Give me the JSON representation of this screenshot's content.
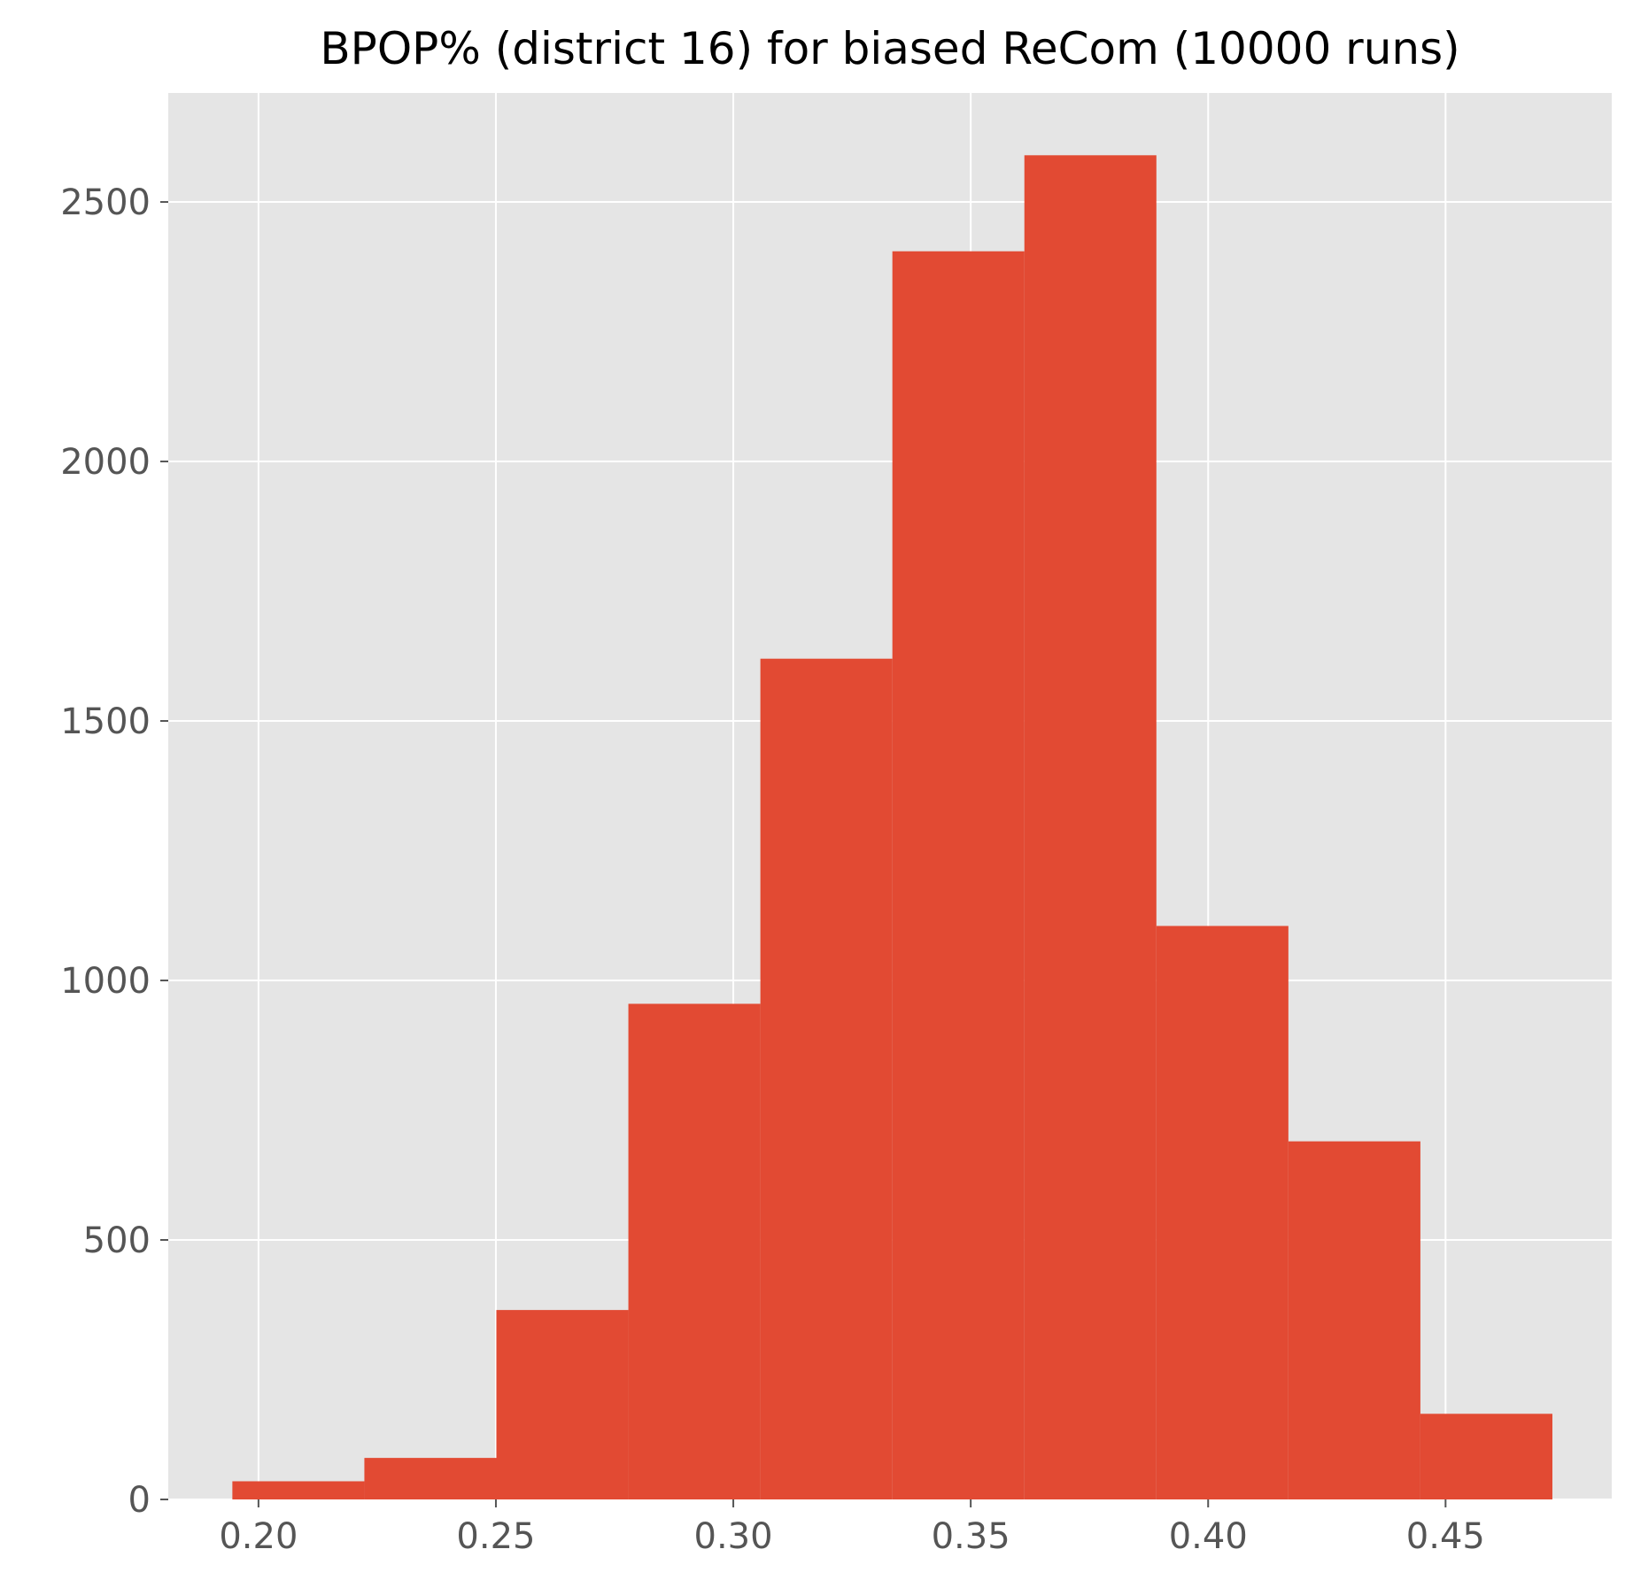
{
  "chart_data": {
    "type": "bar",
    "histogram": true,
    "title": "BPOP% (district 16) for biased ReCom (10000 runs)",
    "xlabel": "",
    "ylabel": "",
    "xlim": [
      0.181,
      0.485
    ],
    "ylim": [
      0,
      2710
    ],
    "x_ticks": [
      0.2,
      0.25,
      0.3,
      0.35,
      0.4,
      0.45
    ],
    "x_tick_labels": [
      "0.20",
      "0.25",
      "0.30",
      "0.35",
      "0.40",
      "0.45"
    ],
    "y_ticks": [
      0,
      500,
      1000,
      1500,
      2000,
      2500
    ],
    "y_tick_labels": [
      "0",
      "500",
      "1000",
      "1500",
      "2000",
      "2500"
    ],
    "bin_edges": [
      0.1945,
      0.2223,
      0.2501,
      0.2779,
      0.3057,
      0.3335,
      0.3613,
      0.3891,
      0.4169,
      0.4447,
      0.4725
    ],
    "values": [
      35,
      80,
      365,
      955,
      1620,
      2405,
      2590,
      1105,
      690,
      165
    ],
    "grid": true,
    "legend": "none",
    "colors": {
      "bar": "#E24A33",
      "plot_background": "#E5E5E5",
      "grid": "#FFFFFF",
      "tick_text": "#555555",
      "title_text": "#000000"
    }
  }
}
